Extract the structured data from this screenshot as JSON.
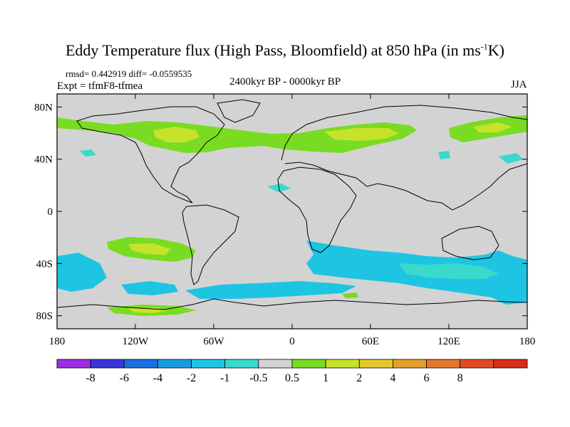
{
  "title": {
    "main": "Eddy Temperature flux (High Pass, Bloomfield) at 850 hPa (in ms",
    "sup": "-1",
    "tail": "K)"
  },
  "subtitle": {
    "stats": "rmsd= 0.442919 diff= -0.0559535",
    "expt": "Expt = tfmF8-tfmea",
    "period": "2400kyr BP - 0000kyr BP",
    "season": "JJA"
  },
  "map": {
    "background_color": "#d3d3d3",
    "coastline_color": "#000000",
    "lat_ticks": [
      {
        "label": "80N",
        "lat": 80
      },
      {
        "label": "40N",
        "lat": 40
      },
      {
        "label": "0",
        "lat": 0
      },
      {
        "label": "40S",
        "lat": -40
      },
      {
        "label": "80S",
        "lat": -80
      }
    ],
    "lon_ticks": [
      {
        "label": "180",
        "lon": -180
      },
      {
        "label": "120W",
        "lon": -120
      },
      {
        "label": "60W",
        "lon": -60
      },
      {
        "label": "0",
        "lon": 0
      },
      {
        "label": "60E",
        "lon": 60
      },
      {
        "label": "120E",
        "lon": 120
      },
      {
        "label": "180",
        "lon": 180
      }
    ]
  },
  "colorbar": {
    "colors": [
      "#9a2fe3",
      "#3a35d9",
      "#1a6fe0",
      "#189ee0",
      "#1ec5e2",
      "#3ad9cc",
      "#d3d3d3",
      "#79dc23",
      "#c6e32a",
      "#e3c72c",
      "#e3a02c",
      "#e3782a",
      "#e04a24",
      "#d6301c"
    ],
    "labels": [
      "-8",
      "-6",
      "-4",
      "-2",
      "-1",
      "-0.5",
      "0.5",
      "1",
      "2",
      "4",
      "6",
      "8"
    ]
  }
}
